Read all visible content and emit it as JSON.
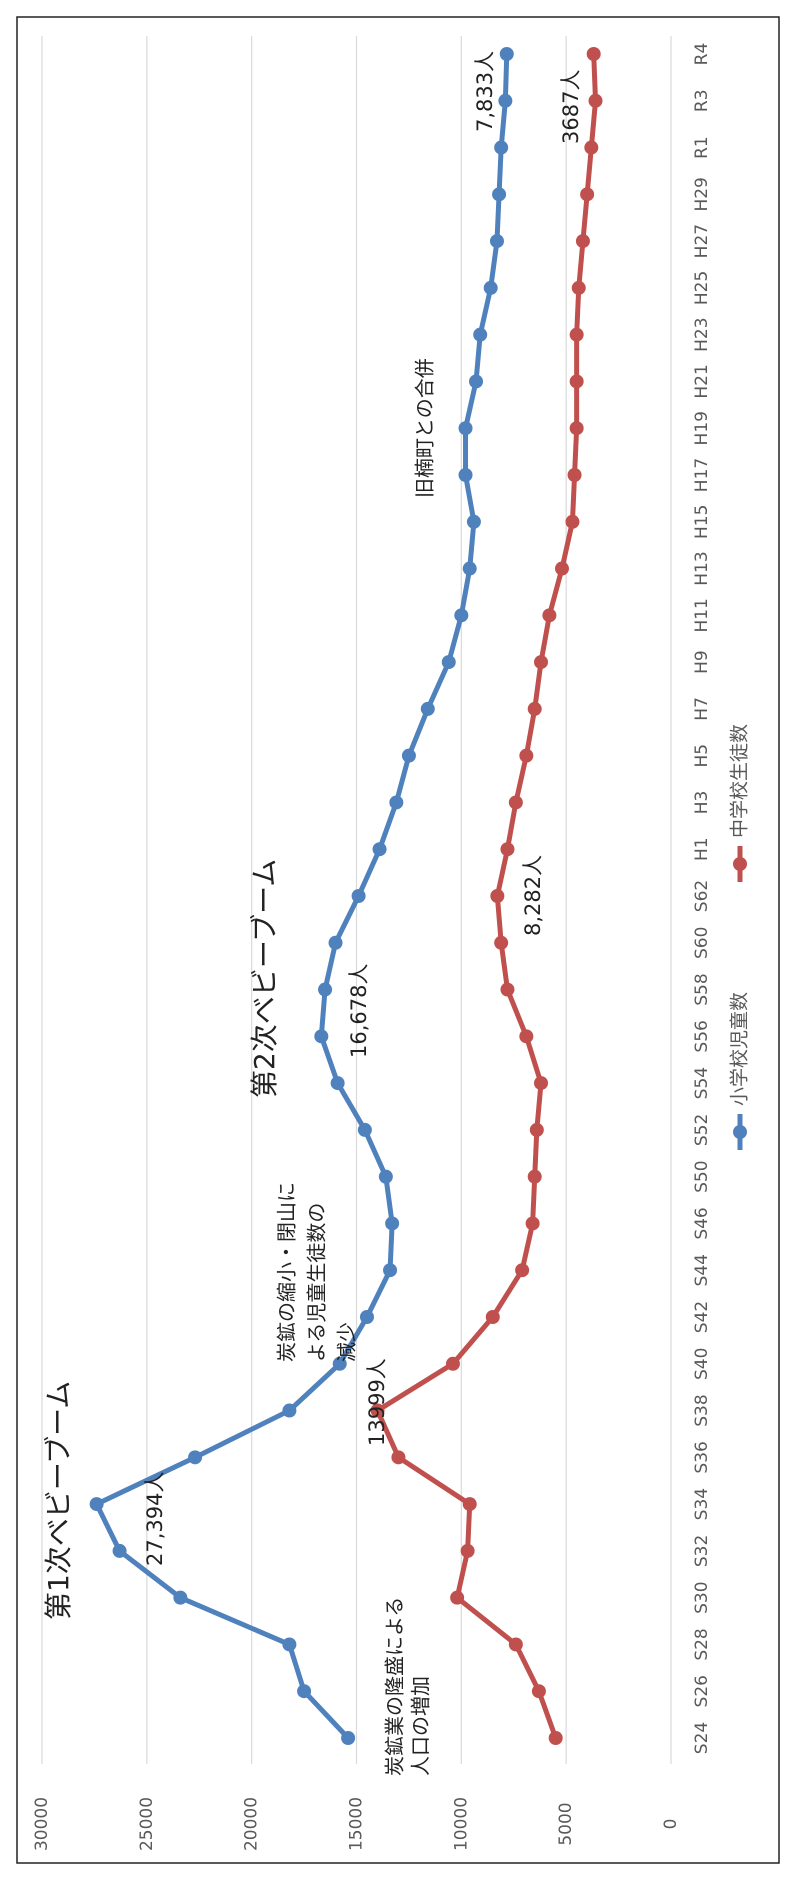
{
  "chart_data": {
    "type": "line",
    "categories": [
      "S24",
      "S26",
      "S28",
      "S30",
      "S32",
      "S34",
      "S36",
      "S38",
      "S40",
      "S42",
      "S44",
      "S46",
      "S50",
      "S52",
      "S54",
      "S56",
      "S58",
      "S60",
      "S62",
      "H1",
      "H3",
      "H5",
      "H7",
      "H9",
      "H11",
      "H13",
      "H15",
      "H17",
      "H19",
      "H21",
      "H23",
      "H25",
      "H27",
      "H29",
      "R1",
      "R3",
      "R4"
    ],
    "series": [
      {
        "name": "小学校児童数",
        "color": "#4f81bd",
        "values": [
          15400,
          17500,
          18200,
          23400,
          26300,
          27394,
          22700,
          18200,
          15800,
          14500,
          13400,
          13300,
          13600,
          14600,
          15900,
          16678,
          16500,
          16000,
          14900,
          13900,
          13100,
          12500,
          11600,
          10600,
          10000,
          9600,
          9400,
          9800,
          9800,
          9300,
          9100,
          8600,
          8300,
          8200,
          8100,
          7900,
          7833
        ],
        "value_labels": [
          null,
          null,
          null,
          null,
          null,
          "27,394人",
          null,
          null,
          null,
          null,
          null,
          null,
          null,
          null,
          null,
          "16,678人",
          null,
          null,
          null,
          null,
          null,
          null,
          null,
          null,
          null,
          null,
          null,
          null,
          null,
          null,
          null,
          null,
          null,
          null,
          null,
          null,
          "7,833人"
        ]
      },
      {
        "name": "中学校生徒数",
        "color": "#c0504d",
        "values": [
          5500,
          6300,
          7400,
          10200,
          9700,
          9600,
          13000,
          13999,
          10400,
          8500,
          7100,
          6600,
          6500,
          6400,
          6200,
          6900,
          7800,
          8100,
          8282,
          7800,
          7400,
          6900,
          6500,
          6200,
          5800,
          5200,
          4700,
          4600,
          4500,
          4500,
          4500,
          4400,
          4200,
          4000,
          3800,
          3600,
          3687
        ],
        "value_labels": [
          null,
          null,
          null,
          null,
          null,
          null,
          null,
          "13999人",
          null,
          null,
          null,
          null,
          null,
          null,
          null,
          null,
          null,
          null,
          "8,282人",
          null,
          null,
          null,
          null,
          null,
          null,
          null,
          null,
          null,
          null,
          null,
          null,
          null,
          null,
          null,
          null,
          null,
          "3687人"
        ]
      }
    ],
    "annotations": [
      {
        "lines": [
          "第1次ベビーブーム"
        ]
      },
      {
        "lines": [
          "炭鉱業の隆盛による",
          "人口の増加"
        ]
      },
      {
        "lines": [
          "炭鉱の縮小・閉山に",
          "よる児童生徒数の",
          "減少"
        ]
      },
      {
        "lines": [
          "第2次ベビーブーム"
        ]
      },
      {
        "lines": [
          "旧楠町との合併"
        ]
      }
    ],
    "ylim": [
      0,
      30000
    ],
    "yticks": [
      0,
      5000,
      10000,
      15000,
      20000,
      25000,
      30000
    ],
    "grid": true,
    "legend": "bottom"
  }
}
